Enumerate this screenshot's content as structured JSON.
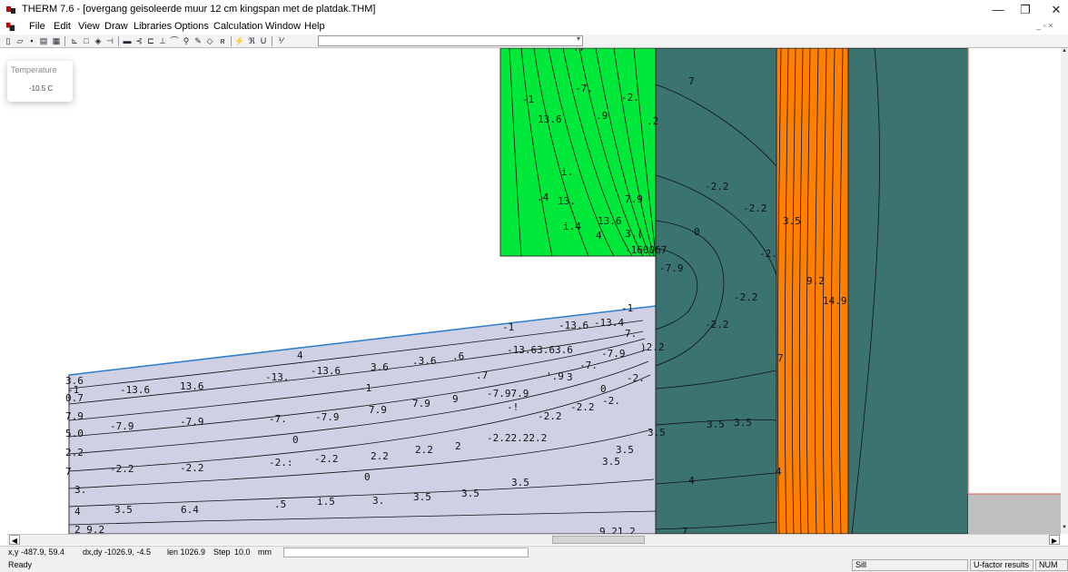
{
  "window": {
    "title": "THERM 7.6 - [overgang geisoleerde muur 12 cm kingspan met de platdak.THM]",
    "minimize": "—",
    "maximize": "❐",
    "close": "✕",
    "mdi_controls": "_ ▫ ×"
  },
  "menu": [
    "File",
    "Edit",
    "View",
    "Draw",
    "Libraries",
    "Options",
    "Calculation",
    "Window",
    "Help"
  ],
  "toolbar": {
    "icons": [
      "new-icon",
      "open-icon",
      "save-icon",
      "print-icon",
      "library-icon",
      "sep",
      "polygon-icon",
      "rectangle-icon",
      "fill-icon",
      "locator-icon",
      "sep",
      "boundary-condition-icon",
      "insert-point-icon",
      "split-icon",
      "offset-icon",
      "arc-icon",
      "zoom-icon",
      "pen-icon",
      "mesh-icon",
      "snap-icon",
      "sep",
      "calculate-icon",
      "view-results-icon",
      "u-factor-icon",
      "sep",
      "fraction-icon"
    ],
    "combo_value": ""
  },
  "temperature_panel": {
    "title": "Temperature",
    "value": "-10.5 C"
  },
  "colors": {
    "green_block": "#00e83a",
    "concrete": "#3a7370",
    "insulation_orange": "#ff8000",
    "floor_fill": "#cfd0e4",
    "sill_grey": "#c0c0c0"
  },
  "isotherm_labels": [
    {
      "t": ".7"
    },
    {
      "t": "-1"
    },
    {
      "t": "-7."
    },
    {
      "t": "-2."
    },
    {
      "t": "13.6"
    },
    {
      "t": ".9"
    },
    {
      "t": ".2"
    },
    {
      "t": "7"
    },
    {
      "t": ".4"
    },
    {
      "t": "13."
    },
    {
      "t": "7.9"
    },
    {
      "t": "i."
    },
    {
      "t": "-2.2"
    },
    {
      "t": "-2.2"
    },
    {
      "t": "13.6"
    },
    {
      "t": "3.5"
    },
    {
      "t": "i.4"
    },
    {
      "t": "4"
    },
    {
      "t": "3.("
    },
    {
      "t": "0"
    },
    {
      "t": "-160067"
    },
    {
      "t": "-2."
    },
    {
      "t": "-7.9"
    },
    {
      "t": "9.2"
    },
    {
      "t": "-2.2"
    },
    {
      "t": "14.9"
    },
    {
      "t": "-1"
    },
    {
      "t": "-13.6"
    },
    {
      "t": "-13.4"
    },
    {
      "t": "-2.2"
    },
    {
      "t": "-1"
    },
    {
      "t": "-13.63.63.6"
    },
    {
      "t": "4"
    },
    {
      "t": "7."
    },
    {
      "t": "-7.9"
    },
    {
      "t": ")2.2"
    },
    {
      "t": "-13."
    },
    {
      "t": "-13.6"
    },
    {
      "t": "3.6"
    },
    {
      "t": ".3.6"
    },
    {
      "t": ".6"
    },
    {
      "t": "-7."
    },
    {
      "t": "7"
    },
    {
      "t": ".7"
    },
    {
      "t": "-2."
    },
    {
      "t": "-1"
    },
    {
      "t": "-13.6"
    },
    {
      "t": "13.6"
    },
    {
      "t": "-1"
    },
    {
      "t": "-7.97.9"
    },
    {
      "t": "'.9"
    },
    {
      "t": "3"
    },
    {
      "t": "0"
    },
    {
      "t": "-2."
    },
    {
      "t": "-2.2"
    },
    {
      "t": "-7."
    },
    {
      "t": "-7.9"
    },
    {
      "t": "7.9"
    },
    {
      "t": "7.9"
    },
    {
      "t": "9"
    },
    {
      "t": "-7.9"
    },
    {
      "t": "-7.9"
    },
    {
      "t": "-!"
    },
    {
      "t": "-2.2"
    },
    {
      "t": "3.5"
    },
    {
      "t": "3.5"
    },
    {
      "t": "3.5"
    },
    {
      "t": "0"
    },
    {
      "t": "3.5"
    },
    {
      "t": "-2.:"
    },
    {
      "t": "-2.2"
    },
    {
      "t": "2.2"
    },
    {
      "t": "2.2"
    },
    {
      "t": "2"
    },
    {
      "t": "-2.22.22.2"
    },
    {
      "t": "-2.2"
    },
    {
      "t": "-2.2"
    },
    {
      "t": "4"
    },
    {
      "t": "0"
    },
    {
      "t": "3.5"
    },
    {
      "t": "4"
    },
    {
      "t": "3.5"
    },
    {
      "t": "3.5"
    },
    {
      "t": ".5"
    },
    {
      "t": "i.5"
    },
    {
      "t": "3."
    },
    {
      "t": "3.5"
    },
    {
      "t": "3.5"
    },
    {
      "t": "6.4"
    },
    {
      "t": "3.6"
    },
    {
      "t": "0.7"
    },
    {
      "t": "7.9"
    },
    {
      "t": "5.0"
    },
    {
      "t": "2.2"
    },
    {
      "t": "7"
    },
    {
      "t": "3."
    },
    {
      "t": "4"
    },
    {
      "t": "2 9.2"
    },
    {
      "t": "9.21.2"
    },
    {
      "t": ".7"
    }
  ],
  "status": {
    "xy": "x,y -487.9, 59.4",
    "dxdy": "dx,dy -1026.9, -4.5",
    "len": "len 1026.9",
    "step_label": "Step",
    "step_value": "10.0",
    "units": "mm",
    "ready": "Ready",
    "sill": "Sill",
    "u_factor": "U-factor results",
    "num": "NUM"
  }
}
